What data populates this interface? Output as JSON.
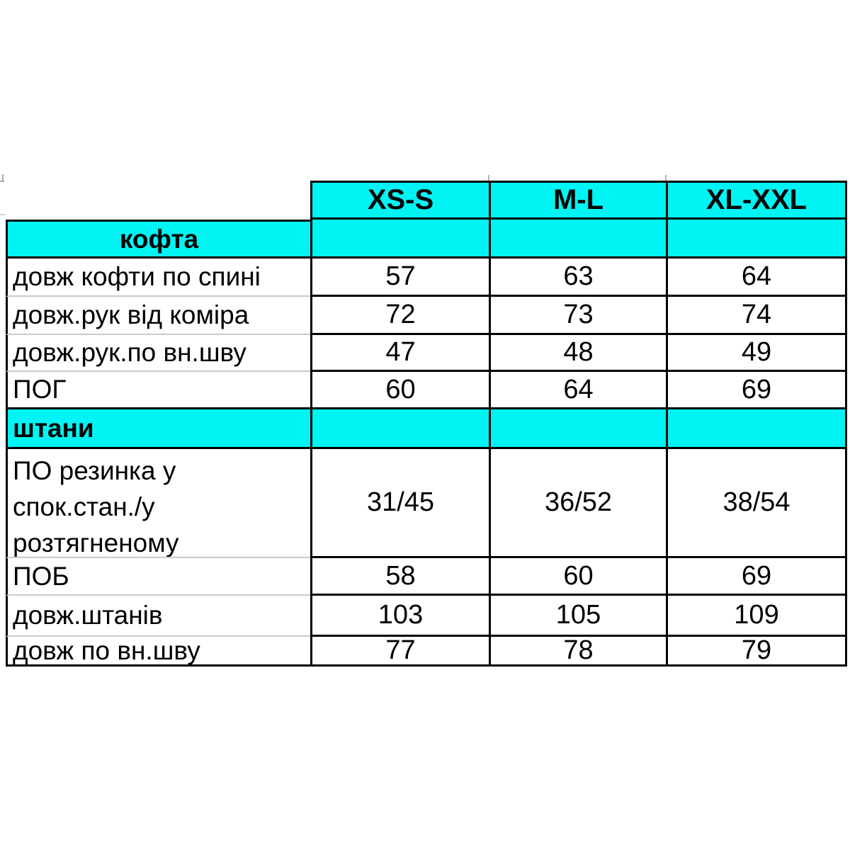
{
  "colors": {
    "section_cyan": "#00F4F4",
    "border_black": "#000000",
    "separator_gray": "#cbcbcb"
  },
  "header": {
    "sizes": [
      "XS-S",
      "M-L",
      "XL-XXL"
    ]
  },
  "sections": {
    "kofta": {
      "label": "кофта"
    },
    "shtany": {
      "label": "штани"
    }
  },
  "rows": {
    "back_length": {
      "label": "довж кофти по спині",
      "values": [
        "57",
        "63",
        "64"
      ]
    },
    "sleeve_from_collar": {
      "label": "довж.рук від коміра",
      "values": [
        "72",
        "73",
        "74"
      ]
    },
    "sleeve_inner_seam": {
      "label": "довж.рук.по вн.шву",
      "values": [
        "47",
        "48",
        "49"
      ]
    },
    "pog": {
      "label": "ПОГ",
      "values": [
        "60",
        "64",
        "69"
      ]
    },
    "po_elastic": {
      "label_lines": [
        "ПО резинка у",
        "спок.стан./у",
        "розтягненому"
      ],
      "values": [
        "31/45",
        "36/52",
        "38/54"
      ]
    },
    "pob": {
      "label": "ПОБ",
      "values": [
        "58",
        "60",
        "69"
      ]
    },
    "pants_length": {
      "label": "довж.штанів",
      "values": [
        "103",
        "105",
        "109"
      ]
    },
    "inner_seam_length": {
      "label": "довж по вн.шву",
      "values": [
        "77",
        "78",
        "79"
      ]
    }
  },
  "chart_data": {
    "type": "table",
    "title": "",
    "columns": [
      "",
      "XS-S",
      "M-L",
      "XL-XXL"
    ],
    "rows": [
      [
        "кофта",
        "",
        "",
        ""
      ],
      [
        "довж кофти по спині",
        "57",
        "63",
        "64"
      ],
      [
        "довж.рук від коміра",
        "72",
        "73",
        "74"
      ],
      [
        "довж.рук.по вн.шву",
        "47",
        "48",
        "49"
      ],
      [
        "ПОГ",
        "60",
        "64",
        "69"
      ],
      [
        "штани",
        "",
        "",
        ""
      ],
      [
        "ПО резинка у спок.стан./у розтягненому",
        "31/45",
        "36/52",
        "38/54"
      ],
      [
        "ПОБ",
        "58",
        "60",
        "69"
      ],
      [
        "довж.штанів",
        "103",
        "105",
        "109"
      ],
      [
        "довж по вн.шву",
        "77",
        "78",
        "79"
      ]
    ]
  }
}
